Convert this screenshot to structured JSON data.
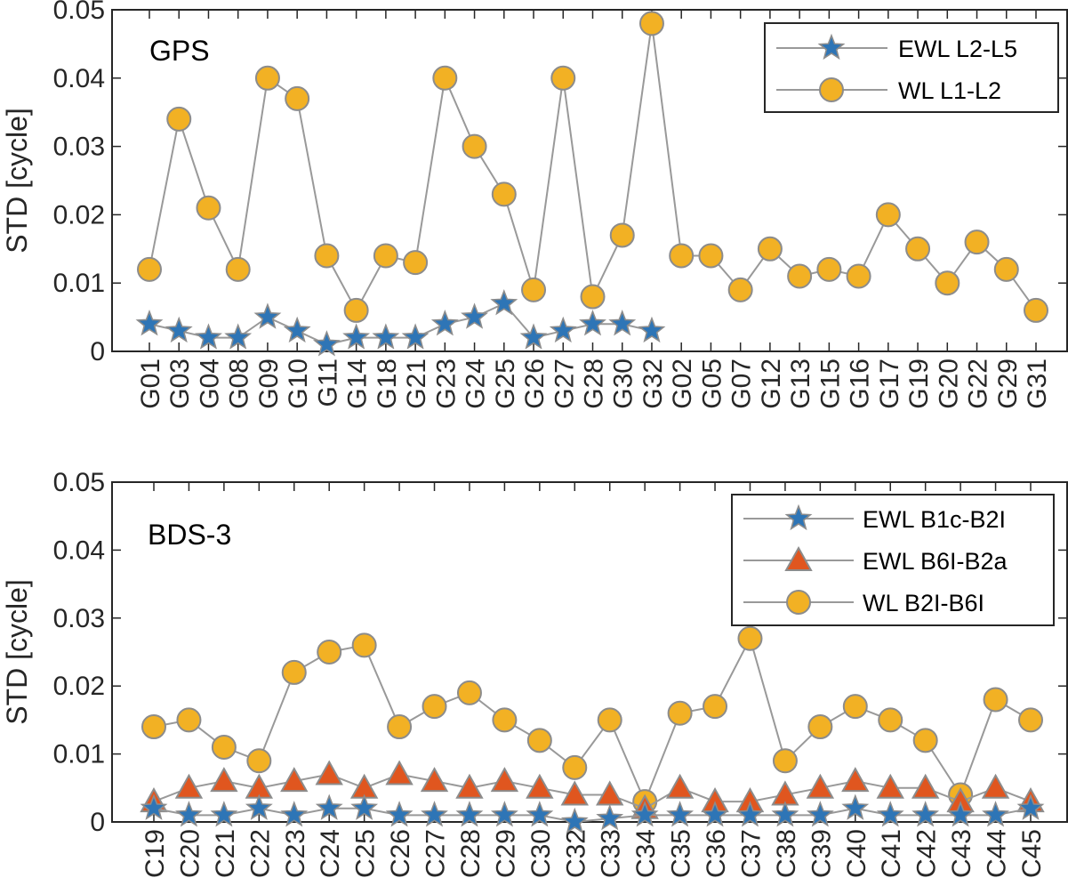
{
  "chart_data": [
    {
      "type": "line",
      "title": "GPS",
      "ylabel": "STD [cycle]",
      "xlabel": "",
      "ylim": [
        0,
        0.05
      ],
      "yticks": [
        0,
        0.01,
        0.02,
        0.03,
        0.04,
        0.05
      ],
      "ytick_labels": [
        "0",
        "0.01",
        "0.02",
        "0.03",
        "0.04",
        "0.05"
      ],
      "grid": false,
      "legend_position": "top-right",
      "categories": [
        "G01",
        "G03",
        "G04",
        "G08",
        "G09",
        "G10",
        "G11",
        "G14",
        "G18",
        "G21",
        "G23",
        "G24",
        "G25",
        "G26",
        "G27",
        "G28",
        "G30",
        "G32",
        "G02",
        "G05",
        "G07",
        "G12",
        "G13",
        "G15",
        "G16",
        "G17",
        "G19",
        "G20",
        "G22",
        "G29",
        "G31"
      ],
      "series": [
        {
          "name": "EWL L2-L5",
          "marker": "star",
          "color": "#2E75B6",
          "values": [
            0.004,
            0.003,
            0.002,
            0.002,
            0.005,
            0.003,
            0.001,
            0.002,
            0.002,
            0.002,
            0.004,
            0.005,
            0.007,
            0.002,
            0.003,
            0.004,
            0.004,
            0.003,
            null,
            null,
            null,
            null,
            null,
            null,
            null,
            null,
            null,
            null,
            null,
            null,
            null
          ]
        },
        {
          "name": "WL L1-L2",
          "marker": "circle",
          "color": "#F2B124",
          "values": [
            0.012,
            0.034,
            0.021,
            0.012,
            0.04,
            0.037,
            0.014,
            0.006,
            0.014,
            0.013,
            0.04,
            0.03,
            0.023,
            0.009,
            0.04,
            0.008,
            0.017,
            0.048,
            0.014,
            0.014,
            0.009,
            0.015,
            0.011,
            0.012,
            0.011,
            0.02,
            0.015,
            0.01,
            0.016,
            0.012,
            0.006
          ]
        }
      ]
    },
    {
      "type": "line",
      "title": "BDS-3",
      "ylabel": "STD [cycle]",
      "xlabel": "",
      "ylim": [
        0,
        0.05
      ],
      "yticks": [
        0,
        0.01,
        0.02,
        0.03,
        0.04,
        0.05
      ],
      "ytick_labels": [
        "0",
        "0.01",
        "0.02",
        "0.03",
        "0.04",
        "0.05"
      ],
      "grid": false,
      "legend_position": "top-right",
      "categories": [
        "C19",
        "C20",
        "C21",
        "C22",
        "C23",
        "C24",
        "C25",
        "C26",
        "C27",
        "C28",
        "C29",
        "C30",
        "C32",
        "C33",
        "C34",
        "C35",
        "C36",
        "C37",
        "C38",
        "C39",
        "C40",
        "C41",
        "C42",
        "C43",
        "C44",
        "C45"
      ],
      "series": [
        {
          "name": "EWL B1c-B2I",
          "marker": "star",
          "color": "#2E75B6",
          "values": [
            0.002,
            0.001,
            0.001,
            0.002,
            0.001,
            0.002,
            0.002,
            0.001,
            0.001,
            0.001,
            0.001,
            0.001,
            0.0,
            0.0005,
            0.001,
            0.001,
            0.001,
            0.001,
            0.001,
            0.001,
            0.002,
            0.001,
            0.001,
            0.001,
            0.001,
            0.002
          ]
        },
        {
          "name": "EWL B6I-B2a",
          "marker": "triangle",
          "color": "#E0561F",
          "values": [
            0.003,
            0.005,
            0.006,
            0.005,
            0.006,
            0.007,
            0.005,
            0.007,
            0.006,
            0.005,
            0.006,
            0.005,
            0.004,
            0.004,
            0.002,
            0.005,
            0.003,
            0.003,
            0.004,
            0.005,
            0.006,
            0.005,
            0.005,
            0.003,
            0.005,
            0.003
          ]
        },
        {
          "name": "WL B2I-B6I",
          "marker": "circle",
          "color": "#F2B124",
          "values": [
            0.014,
            0.015,
            0.011,
            0.009,
            0.022,
            0.025,
            0.026,
            0.014,
            0.017,
            0.019,
            0.015,
            0.012,
            0.008,
            0.015,
            0.003,
            0.016,
            0.017,
            0.027,
            0.009,
            0.014,
            0.017,
            0.015,
            0.012,
            0.004,
            0.018,
            0.015
          ]
        }
      ]
    }
  ]
}
